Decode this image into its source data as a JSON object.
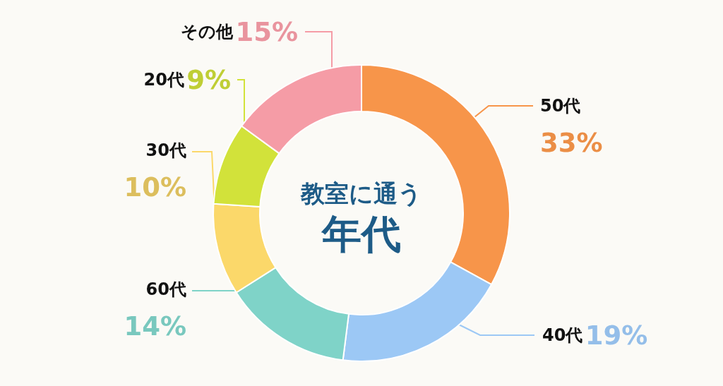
{
  "chart_data": {
    "type": "donut",
    "title": "教室に通う",
    "subtitle": "年代",
    "categories": [
      "50代",
      "40代",
      "60代",
      "30代",
      "20代",
      "その他"
    ],
    "values": [
      33,
      19,
      14,
      10,
      9,
      15
    ],
    "value_labels": [
      "33%",
      "19%",
      "14%",
      "10%",
      "9%",
      "15%"
    ],
    "colors": [
      "#f7954a",
      "#9cc8f5",
      "#7fd3c8",
      "#fbd86a",
      "#d2e23a",
      "#f59ca6"
    ]
  }
}
